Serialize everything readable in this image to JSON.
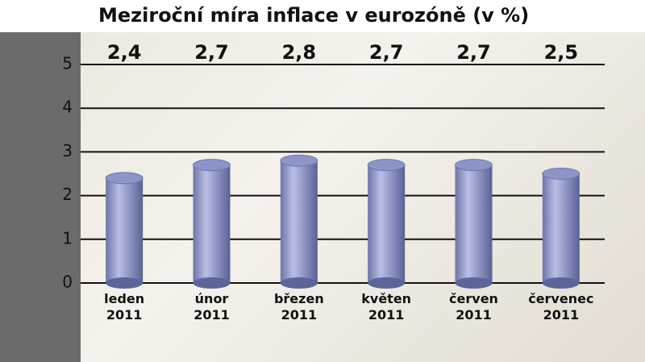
{
  "chart_data": {
    "type": "bar",
    "title": "Meziroční míra inflace v eurozóně (v %)",
    "categories": [
      "leden\n2011",
      "únor\n2011",
      "březen\n2011",
      "květen\n2011",
      "červen\n2011",
      "červenec\n2011"
    ],
    "values": [
      2.4,
      2.7,
      2.8,
      2.7,
      2.7,
      2.5
    ],
    "value_labels": [
      "2,4",
      "2,7",
      "2,8",
      "2,7",
      "2,7",
      "2,5"
    ],
    "color": "#8d95c8",
    "ylim": [
      0,
      5
    ],
    "yticks": [
      0,
      1,
      2,
      3,
      4,
      5
    ],
    "grid": true
  }
}
